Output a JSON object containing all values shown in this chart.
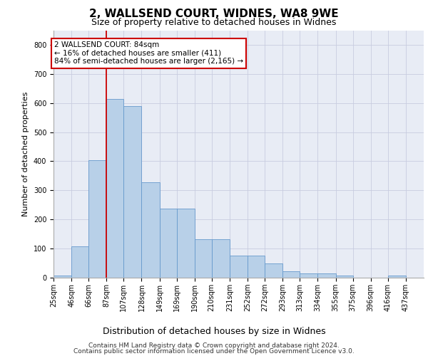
{
  "title": "2, WALLSEND COURT, WIDNES, WA8 9WE",
  "subtitle": "Size of property relative to detached houses in Widnes",
  "xlabel": "Distribution of detached houses by size in Widnes",
  "ylabel": "Number of detached properties",
  "bar_color": "#b8d0e8",
  "bar_edge_color": "#6699cc",
  "grid_color": "#c8cce0",
  "background_color": "#e8ecf5",
  "vline_x": 87,
  "vline_color": "#cc0000",
  "annotation_text": "2 WALLSEND COURT: 84sqm\n← 16% of detached houses are smaller (411)\n84% of semi-detached houses are larger (2,165) →",
  "annotation_box_color": "#cc0000",
  "categories": [
    "25sqm",
    "46sqm",
    "66sqm",
    "87sqm",
    "107sqm",
    "128sqm",
    "149sqm",
    "169sqm",
    "190sqm",
    "210sqm",
    "231sqm",
    "252sqm",
    "272sqm",
    "293sqm",
    "313sqm",
    "334sqm",
    "355sqm",
    "375sqm",
    "396sqm",
    "416sqm",
    "437sqm"
  ],
  "bin_edges": [
    25,
    46,
    66,
    87,
    107,
    128,
    149,
    169,
    190,
    210,
    231,
    252,
    272,
    293,
    313,
    334,
    355,
    375,
    396,
    416,
    437,
    458
  ],
  "values": [
    8,
    107,
    403,
    613,
    590,
    328,
    238,
    238,
    133,
    133,
    77,
    77,
    49,
    22,
    15,
    15,
    8,
    0,
    0,
    8,
    0
  ],
  "ylim": [
    0,
    850
  ],
  "yticks": [
    0,
    100,
    200,
    300,
    400,
    500,
    600,
    700,
    800
  ],
  "footer_line1": "Contains HM Land Registry data © Crown copyright and database right 2024.",
  "footer_line2": "Contains public sector information licensed under the Open Government Licence v3.0.",
  "title_fontsize": 11,
  "subtitle_fontsize": 9,
  "ylabel_fontsize": 8,
  "xlabel_fontsize": 9,
  "tick_fontsize": 7,
  "ann_fontsize": 7.5,
  "footer_fontsize": 6.5
}
